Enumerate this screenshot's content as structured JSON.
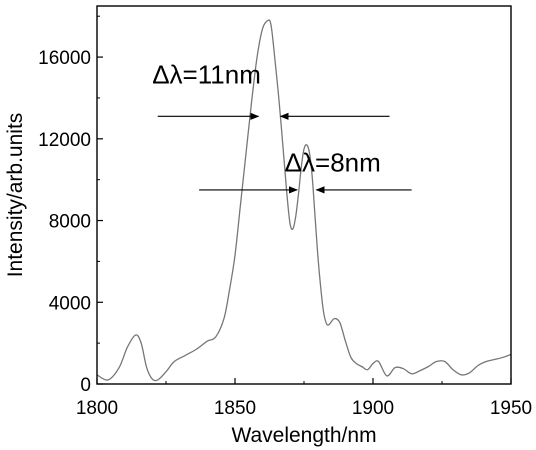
{
  "chart_data": {
    "type": "line",
    "title": "",
    "xlabel": "Wavelength/nm",
    "ylabel": "Intensity/arb.units",
    "xlim": [
      1800,
      1950
    ],
    "ylim": [
      0,
      18500
    ],
    "grid": false,
    "legend": "none",
    "line_color": "#777777",
    "x_ticks": [
      {
        "value": 1800,
        "label": "1800"
      },
      {
        "value": 1850,
        "label": "1850"
      },
      {
        "value": 1900,
        "label": "1900"
      },
      {
        "value": 1950,
        "label": "1950"
      }
    ],
    "y_ticks": [
      {
        "value": 0,
        "label": "0"
      },
      {
        "value": 4000,
        "label": "4000"
      },
      {
        "value": 8000,
        "label": "8000"
      },
      {
        "value": 12000,
        "label": "12000"
      },
      {
        "value": 16000,
        "label": "16000"
      }
    ],
    "series": [
      {
        "x": [
          1800,
          1804,
          1808,
          1811,
          1814,
          1816,
          1818,
          1820,
          1822,
          1825,
          1828,
          1832,
          1836,
          1840,
          1843,
          1846,
          1848,
          1850,
          1852,
          1854,
          1856,
          1858,
          1860,
          1862,
          1863,
          1864,
          1866,
          1868,
          1869,
          1870,
          1871,
          1872,
          1873,
          1874,
          1875,
          1876,
          1877,
          1878,
          1879,
          1880,
          1881,
          1882,
          1883,
          1884,
          1886,
          1888,
          1890,
          1892,
          1894,
          1896,
          1898,
          1900,
          1902,
          1905,
          1908,
          1911,
          1914,
          1917,
          1920,
          1923,
          1926,
          1929,
          1932,
          1935,
          1938,
          1941,
          1944,
          1947,
          1950
        ],
        "y": [
          450,
          200,
          800,
          1800,
          2400,
          2000,
          800,
          250,
          200,
          600,
          1100,
          1400,
          1700,
          2100,
          2300,
          3200,
          4600,
          6300,
          8800,
          11300,
          13800,
          16000,
          17400,
          17800,
          17600,
          16500,
          13800,
          10600,
          9000,
          7800,
          7600,
          8200,
          9300,
          10600,
          11500,
          11700,
          11300,
          10100,
          8200,
          6300,
          4800,
          3600,
          3000,
          2900,
          3200,
          3000,
          2100,
          1300,
          1000,
          850,
          700,
          1000,
          1100,
          400,
          800,
          750,
          500,
          650,
          850,
          1100,
          1100,
          700,
          450,
          550,
          900,
          1100,
          1200,
          1300,
          1450
        ]
      }
    ],
    "annotations": [
      {
        "text": "Δλ=11nm",
        "x": 1820,
        "y": 14700
      },
      {
        "text": "Δλ=8nm",
        "x": 1868,
        "y": 10400
      }
    ],
    "arrows": [
      {
        "from_x": 1822,
        "to_x": 1858.5,
        "y": 13100
      },
      {
        "from_x": 1906,
        "to_x": 1866.5,
        "y": 13100
      },
      {
        "from_x": 1837,
        "to_x": 1872.5,
        "y": 9500
      },
      {
        "from_x": 1914,
        "to_x": 1879.5,
        "y": 9500
      }
    ]
  }
}
